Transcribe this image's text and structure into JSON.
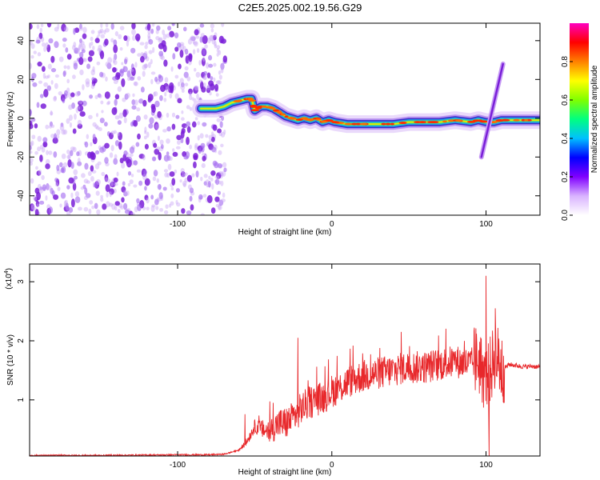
{
  "title": "C2E5.2025.002.19.56.G29",
  "chart_data": [
    {
      "type": "heatmap",
      "xlabel": "Height of straight line (km)",
      "ylabel": "Frequency (Hz)",
      "xlim": [
        -196,
        135
      ],
      "ylim": [
        -50,
        49
      ],
      "xticks": [
        -100,
        0,
        100
      ],
      "xtick_labels": [
        "-100",
        "0",
        "100"
      ],
      "yticks": [
        -40,
        -20,
        0,
        20,
        40
      ],
      "ytick_labels": [
        "-40",
        "-20",
        "0",
        "20",
        "40"
      ],
      "colorbar": {
        "label": "Normalized spectral amplitude",
        "range": [
          0,
          1
        ],
        "ticks": [
          0,
          0.2,
          0.4,
          0.6,
          0.8
        ],
        "tick_labels": [
          "0.0",
          "0.2",
          "0.4",
          "0.6",
          "0.8"
        ],
        "colors": [
          "#ffffff",
          "#d9b3ff",
          "#8000ff",
          "#0000ff",
          "#00c0ff",
          "#00ff80",
          "#80ff00",
          "#ffff00",
          "#ff8000",
          "#ff0000",
          "#ff00c0"
        ]
      },
      "noise_region_x": [
        -196,
        -72
      ],
      "ridge": {
        "x": [
          -85,
          -75,
          -70,
          -65,
          -60,
          -55,
          -52,
          -50,
          -46,
          -42,
          -38,
          -34,
          -30,
          -26,
          -22,
          -18,
          -14,
          -10,
          -6,
          -2,
          2,
          10,
          20,
          30,
          40,
          50,
          60,
          70,
          80,
          90,
          95,
          100,
          105,
          110,
          120,
          135
        ],
        "y": [
          5,
          5,
          6,
          8,
          9,
          10,
          10,
          4,
          6,
          6,
          5,
          3,
          1,
          0,
          -1,
          0,
          -1,
          0,
          -2,
          -1,
          -2,
          -3,
          -3,
          -3,
          -3,
          -2,
          -2,
          -2,
          -1,
          -2,
          -1,
          -2,
          -2,
          -1,
          -1,
          -1
        ]
      },
      "streak": {
        "x": [
          97,
          111
        ],
        "y": [
          -20,
          28
        ]
      }
    },
    {
      "type": "line",
      "xlabel": "Height of straight line (km)",
      "ylabel": "SNR (10 * v/v)",
      "y_multiplier_label": "(x10",
      "y_multiplier_exp": "4",
      "xlim": [
        -196,
        135
      ],
      "ylim": [
        0.05,
        3.3
      ],
      "xticks": [
        -100,
        0,
        100
      ],
      "xtick_labels": [
        "-100",
        "0",
        "100"
      ],
      "yticks": [
        1,
        2,
        3
      ],
      "ytick_labels": [
        "1",
        "2",
        "3"
      ],
      "color": "#e8282b",
      "series": [
        {
          "x": [
            -196,
            -150,
            -100,
            -80,
            -70,
            -60,
            -55,
            -50,
            -45,
            -40,
            -35,
            -30,
            -25,
            -20,
            -15,
            -10,
            -5,
            0,
            5,
            10,
            20,
            30,
            40,
            50,
            60,
            70,
            80,
            90,
            95,
            100,
            103,
            106,
            110,
            115,
            120,
            125,
            130,
            135
          ],
          "y": [
            0.06,
            0.06,
            0.07,
            0.07,
            0.08,
            0.15,
            0.3,
            0.55,
            0.5,
            0.45,
            0.6,
            0.6,
            0.7,
            0.85,
            0.95,
            1.0,
            1.05,
            1.15,
            1.2,
            1.3,
            1.4,
            1.45,
            1.5,
            1.55,
            1.55,
            1.6,
            1.65,
            1.6,
            1.7,
            1.3,
            1.5,
            1.8,
            1.5,
            1.6,
            1.58,
            1.56,
            1.57,
            1.55
          ]
        }
      ],
      "spikes": [
        {
          "x": -38,
          "y": 0.95
        },
        {
          "x": -22,
          "y": 2.05
        },
        {
          "x": 45,
          "y": 2.15
        },
        {
          "x": 100,
          "y": 3.1
        },
        {
          "x": 102,
          "y": 0.05
        },
        {
          "x": 106,
          "y": 2.55
        }
      ]
    }
  ]
}
